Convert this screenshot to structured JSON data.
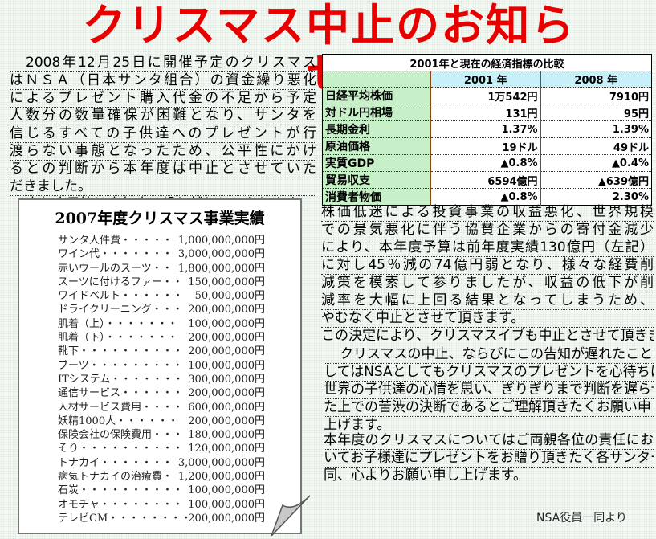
{
  "title": "クリスマス中止のお知らせ",
  "intro_lines": [
    "2008年12月25日に開催予定のクリスマス",
    "はＮＳＡ（日本サンタ組合）の資金繰り悪化",
    "によるプレゼント購入代金の不足から予定",
    "人数分の数量確保が困難となり、サンタを",
    "信じるすべての子供達へのプレゼントが行",
    "渡らない事態となったため、公平性にかけ",
    "るとの判断から本年度は中止とさせていた",
    "だきました。",
    "本年度予算は来年度に繰り越しといたします。"
  ],
  "table": {
    "caption": "2001年と現在の経済指標の比較",
    "headers": [
      "",
      "2001 年",
      "2008 年"
    ],
    "rows": [
      [
        "日経平均株価",
        "1万542円",
        "7910円"
      ],
      [
        "対ドル円相場",
        "131円",
        "95円"
      ],
      [
        "長期金利",
        "1.37%",
        "1.39%"
      ],
      [
        "原油価格",
        "19ドル",
        "49ドル"
      ],
      [
        "実質GDP",
        "▲0.8%",
        "▲0.4%"
      ],
      [
        "貿易収支",
        "6594億円",
        "▲639億円"
      ],
      [
        "消費者物価",
        "▲0.8%",
        "2.30%"
      ]
    ]
  },
  "results": {
    "title": "2007年度クリスマス事業実績",
    "items": [
      [
        "サンタ人件費・・・・・",
        "1,000,000,000円"
      ],
      [
        "ワイン代・・・・・・・",
        "3,000,000,000円"
      ],
      [
        "赤いウールのスーツ・・",
        "1,800,000,000円"
      ],
      [
        "スーツに付けるファー・・",
        "150,000,000円"
      ],
      [
        "ワイドベルト・・・・・・",
        "50,000,000円"
      ],
      [
        "ドライクリーニング・・・",
        "200,000,000円"
      ],
      [
        "肌着（上）・・・・・・・",
        "100,000,000円"
      ],
      [
        "肌着（下）・・・・・・・",
        "200,000,000円"
      ],
      [
        "靴下・・・・・・・・・・",
        "200,000,000円"
      ],
      [
        "ブーツ・・・・・・・・・",
        "100,000,000円"
      ],
      [
        "ITシステム・・・・・・・",
        "300,000,000円"
      ],
      [
        "通信サービス・・・・・・",
        "200,000,000円"
      ],
      [
        "人材サービス費用・・・・",
        "600,000,000円"
      ],
      [
        "妖精1000人・・・・・・",
        "200,000,000円"
      ],
      [
        "保険会社の保険費用・・・",
        "180,000,000円"
      ],
      [
        "そり・・・・・・・・・・",
        "120,000,000円"
      ],
      [
        "トナカイ・・・・・・・",
        "3,000,000,000円"
      ],
      [
        "病気トナカイの治療費・",
        "1,200,000,000円"
      ],
      [
        "石炭・・・・・・・・・・",
        "100,000,000円"
      ],
      [
        "オモチャ・・・・・・・・",
        "100,000,000円"
      ],
      [
        "テレビCM・・・・・・・・",
        "200,000,000円"
      ]
    ]
  },
  "reason_lines": [
    "株価低迷による投資事業の収益悪化、世界規模",
    "での景気悪化に伴う協賛企業からの寄付金減少",
    "により、本年度予算は前年度実績130億円（左記）",
    "に対し45％減の74億円弱となり、様々な経費削",
    "減策を模索して参りましたが、収益の低下が削",
    "減率を大幅に上回る結果となってしまうため、",
    "やむなく中止とさせて頂きます。",
    "この決定により、クリスマスイブも中止とさせて頂きます。"
  ],
  "apology_lines": [
    "クリスマスの中止、ならびにこの告知が遅れたことにつきま",
    "してはNSAとしてもクリスマスのプレゼントを心待ちにする",
    "世界の子供達の心情を思い、ぎりぎりまで判断を遅らせ",
    "た上での苦渋の決断であるとご理解頂きたくお願い申し",
    "上げます。"
  ],
  "parents_lines": [
    "本年度のクリスマスについてはご両親各位の責任にお",
    "いてお子様達にプレゼントをお贈り頂きたく各サンター",
    "同、心よりお願い申し上げます。"
  ],
  "signature": "NSA役員一同より"
}
